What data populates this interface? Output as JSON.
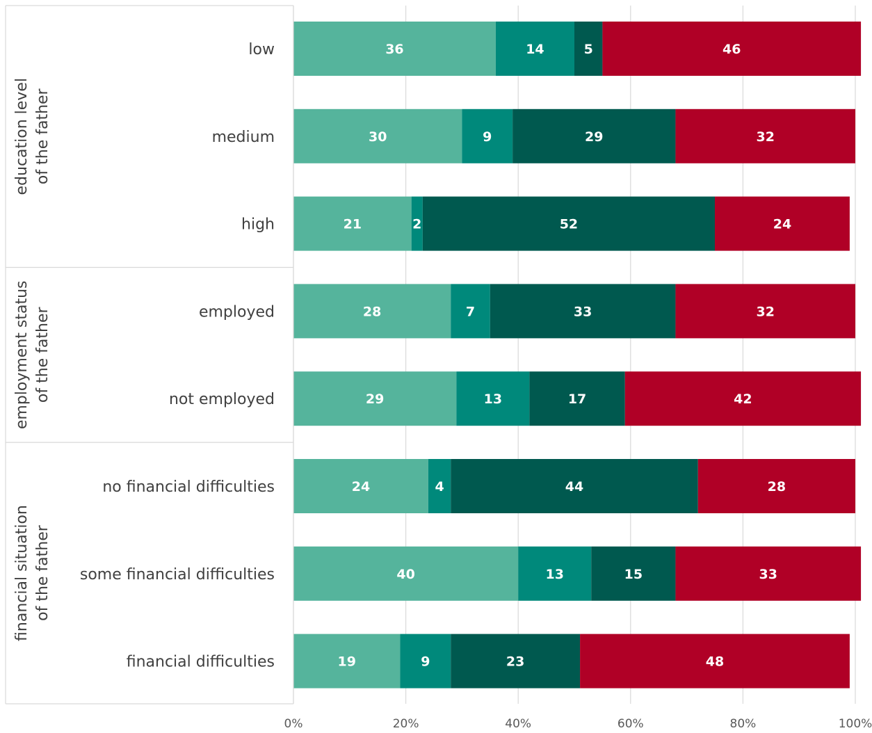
{
  "chart_data": {
    "type": "bar",
    "orientation": "horizontal",
    "stacked": "percent",
    "categories": [
      "low",
      "medium",
      "high",
      "employed",
      "not employed",
      "no financial difficulties",
      "some financial difficulties",
      "financial difficulties"
    ],
    "groups": [
      {
        "label": "education level of the father",
        "lines": [
          "education level",
          "of the father"
        ],
        "categories": [
          "low",
          "medium",
          "high"
        ]
      },
      {
        "label": "employment status of the father",
        "lines": [
          "employment status",
          "of the father"
        ],
        "categories": [
          "employed",
          "not employed"
        ]
      },
      {
        "label": "financial situation of the father",
        "lines": [
          "financial situation",
          "of the father"
        ],
        "categories": [
          "no financial difficulties",
          "some financial difficulties",
          "financial difficulties"
        ]
      }
    ],
    "series": [
      {
        "color": "#55b49c",
        "values": [
          36,
          30,
          21,
          28,
          29,
          24,
          40,
          19
        ]
      },
      {
        "color": "#00897b",
        "values": [
          14,
          9,
          2,
          7,
          13,
          4,
          13,
          9
        ]
      },
      {
        "color": "#00594f",
        "values": [
          5,
          29,
          52,
          33,
          17,
          44,
          15,
          23
        ]
      },
      {
        "color": "#b00026",
        "values": [
          46,
          32,
          24,
          32,
          42,
          28,
          33,
          48
        ]
      }
    ],
    "xlim": [
      0,
      100
    ],
    "xticks": [
      "0%",
      "20%",
      "40%",
      "60%",
      "80%",
      "100%"
    ],
    "grid": true,
    "legend": "none",
    "title": "",
    "xlabel": "",
    "ylabel": ""
  }
}
